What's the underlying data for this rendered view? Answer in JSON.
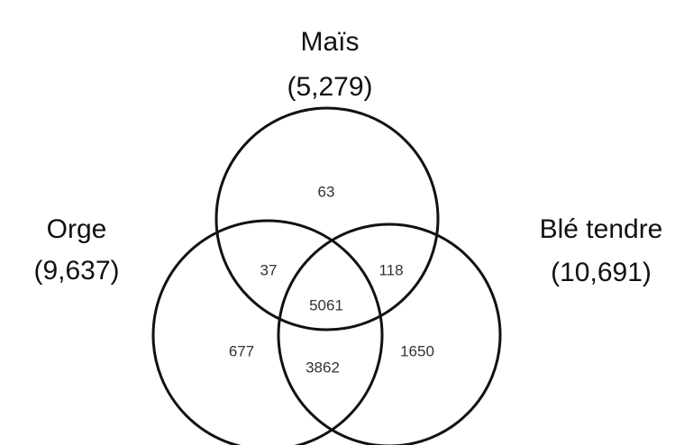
{
  "sets": [
    {
      "name": "Maïs",
      "total": "(5,279)"
    },
    {
      "name": "Orge",
      "total": "(9,637)"
    },
    {
      "name": "Blé tendre",
      "total": "(10,691)"
    }
  ],
  "regions": [
    {
      "label": "63"
    },
    {
      "label": "37"
    },
    {
      "label": "118"
    },
    {
      "label": "5061"
    },
    {
      "label": "677"
    },
    {
      "label": "3862"
    },
    {
      "label": "1650"
    }
  ]
}
